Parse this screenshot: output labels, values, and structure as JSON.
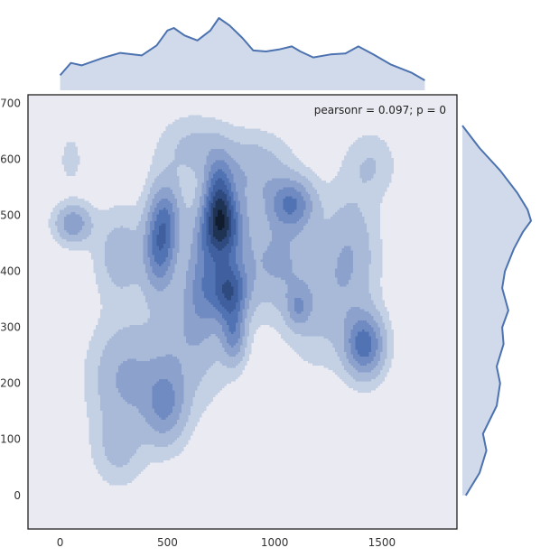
{
  "chart_data": {
    "type": "jointplot-kde",
    "title": "",
    "xlabel": "",
    "ylabel": "",
    "annotation": "pearsonr = 0.097; p = 0",
    "xlim": [
      -150,
      1850
    ],
    "ylim": [
      -60,
      715
    ],
    "x_ticks": [
      0,
      500,
      1000,
      1500
    ],
    "y_ticks": [
      0,
      100,
      200,
      300,
      400,
      500,
      600,
      700
    ],
    "grid": false,
    "colors": {
      "plot_background": "#EAEAF2",
      "line": "#4C72B0",
      "marginal_fill": "#D1DAEA",
      "levels": [
        "#C4D0E4",
        "#A9BAD9",
        "#8CA2CD",
        "#6F8BC1",
        "#5273B3",
        "#3F5F9E",
        "#2F4A7E",
        "#1F3354",
        "#111C2E"
      ]
    },
    "marginal_x_density": [
      {
        "x": 0,
        "d": 0.3
      },
      {
        "x": 50,
        "d": 0.55
      },
      {
        "x": 100,
        "d": 0.5
      },
      {
        "x": 200,
        "d": 0.65
      },
      {
        "x": 280,
        "d": 0.75
      },
      {
        "x": 380,
        "d": 0.7
      },
      {
        "x": 450,
        "d": 0.9
      },
      {
        "x": 500,
        "d": 1.2
      },
      {
        "x": 530,
        "d": 1.25
      },
      {
        "x": 580,
        "d": 1.1
      },
      {
        "x": 640,
        "d": 1.0
      },
      {
        "x": 700,
        "d": 1.2
      },
      {
        "x": 740,
        "d": 1.45
      },
      {
        "x": 790,
        "d": 1.3
      },
      {
        "x": 850,
        "d": 1.05
      },
      {
        "x": 900,
        "d": 0.8
      },
      {
        "x": 960,
        "d": 0.78
      },
      {
        "x": 1020,
        "d": 0.82
      },
      {
        "x": 1080,
        "d": 0.88
      },
      {
        "x": 1120,
        "d": 0.78
      },
      {
        "x": 1180,
        "d": 0.66
      },
      {
        "x": 1260,
        "d": 0.72
      },
      {
        "x": 1330,
        "d": 0.74
      },
      {
        "x": 1390,
        "d": 0.88
      },
      {
        "x": 1460,
        "d": 0.72
      },
      {
        "x": 1540,
        "d": 0.52
      },
      {
        "x": 1640,
        "d": 0.35
      },
      {
        "x": 1700,
        "d": 0.2
      }
    ],
    "marginal_y_density": [
      {
        "y": 0,
        "d": 0.05
      },
      {
        "y": 40,
        "d": 0.25
      },
      {
        "y": 80,
        "d": 0.35
      },
      {
        "y": 110,
        "d": 0.3
      },
      {
        "y": 160,
        "d": 0.5
      },
      {
        "y": 200,
        "d": 0.55
      },
      {
        "y": 230,
        "d": 0.5
      },
      {
        "y": 270,
        "d": 0.6
      },
      {
        "y": 300,
        "d": 0.58
      },
      {
        "y": 330,
        "d": 0.67
      },
      {
        "y": 370,
        "d": 0.58
      },
      {
        "y": 400,
        "d": 0.62
      },
      {
        "y": 440,
        "d": 0.75
      },
      {
        "y": 470,
        "d": 0.88
      },
      {
        "y": 490,
        "d": 1.0
      },
      {
        "y": 510,
        "d": 0.95
      },
      {
        "y": 540,
        "d": 0.8
      },
      {
        "y": 580,
        "d": 0.55
      },
      {
        "y": 620,
        "d": 0.25
      },
      {
        "y": 660,
        "d": 0.0
      }
    ],
    "density_peaks": [
      {
        "x": 750,
        "y": 478,
        "sx": 70,
        "sy": 45,
        "w": 1.0
      },
      {
        "x": 790,
        "y": 365,
        "sx": 60,
        "sy": 38,
        "w": 0.78
      },
      {
        "x": 1420,
        "y": 268,
        "sx": 65,
        "sy": 40,
        "w": 0.7
      },
      {
        "x": 1080,
        "y": 520,
        "sx": 75,
        "sy": 32,
        "w": 0.58
      },
      {
        "x": 740,
        "y": 545,
        "sx": 45,
        "sy": 45,
        "w": 0.52
      },
      {
        "x": 810,
        "y": 285,
        "sx": 40,
        "sy": 35,
        "w": 0.45
      },
      {
        "x": 490,
        "y": 495,
        "sx": 55,
        "sy": 50,
        "w": 0.55
      },
      {
        "x": 460,
        "y": 430,
        "sx": 50,
        "sy": 50,
        "w": 0.5
      },
      {
        "x": 60,
        "y": 485,
        "sx": 60,
        "sy": 25,
        "w": 0.45
      },
      {
        "x": 490,
        "y": 160,
        "sx": 70,
        "sy": 50,
        "w": 0.45
      },
      {
        "x": 300,
        "y": 210,
        "sx": 110,
        "sy": 70,
        "w": 0.35
      },
      {
        "x": 1000,
        "y": 420,
        "sx": 120,
        "sy": 60,
        "w": 0.35
      },
      {
        "x": 900,
        "y": 580,
        "sx": 120,
        "sy": 45,
        "w": 0.3
      },
      {
        "x": 600,
        "y": 280,
        "sx": 130,
        "sy": 80,
        "w": 0.28
      },
      {
        "x": 1350,
        "y": 430,
        "sx": 90,
        "sy": 80,
        "w": 0.32
      },
      {
        "x": 1200,
        "y": 330,
        "sx": 110,
        "sy": 70,
        "w": 0.2
      },
      {
        "x": 280,
        "y": 430,
        "sx": 80,
        "sy": 55,
        "w": 0.28
      },
      {
        "x": 660,
        "y": 380,
        "sx": 60,
        "sy": 60,
        "w": 0.4
      },
      {
        "x": 270,
        "y": 80,
        "sx": 80,
        "sy": 45,
        "w": 0.2
      },
      {
        "x": 50,
        "y": 600,
        "sx": 30,
        "sy": 25,
        "w": 0.18
      },
      {
        "x": 620,
        "y": 620,
        "sx": 110,
        "sy": 40,
        "w": 0.22
      },
      {
        "x": 1110,
        "y": 335,
        "sx": 40,
        "sy": 25,
        "w": 0.3
      },
      {
        "x": 1450,
        "y": 590,
        "sx": 80,
        "sy": 40,
        "w": 0.18
      }
    ]
  }
}
